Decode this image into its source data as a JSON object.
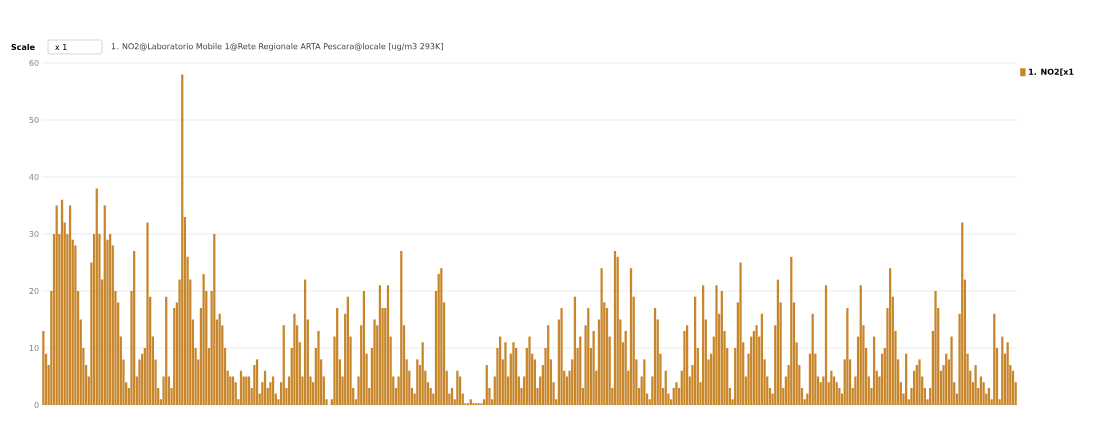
{
  "chart_data": {
    "type": "bar",
    "title": "1. NO2@Laboratorio Mobile 1@Rete Regionale ARTA Pescara@locale [ug/m3 293K]",
    "annotations": [
      "Scale",
      "x 1"
    ],
    "ylim": [
      0,
      60
    ],
    "yticks": [
      0,
      10,
      20,
      30,
      40,
      50,
      60
    ],
    "grid": "y",
    "legend": "top right",
    "series": [
      {
        "name": "1. NO2[x1",
        "color": "#c8862c",
        "values": [
          13,
          9,
          7,
          20,
          30,
          35,
          30,
          36,
          32,
          30,
          35,
          29,
          28,
          20,
          15,
          10,
          7,
          5,
          25,
          30,
          38,
          30,
          22,
          35,
          29,
          30,
          28,
          20,
          18,
          12,
          8,
          4,
          3,
          20,
          27,
          5,
          8,
          9,
          10,
          32,
          19,
          12,
          8,
          3,
          1,
          5,
          19,
          5,
          3,
          17,
          18,
          22,
          58,
          33,
          26,
          22,
          15,
          10,
          8,
          17,
          23,
          20,
          10,
          20,
          30,
          15,
          16,
          14,
          10,
          6,
          5,
          5,
          4,
          1,
          6,
          5,
          5,
          5,
          3,
          7,
          8,
          2,
          4,
          6,
          3,
          4,
          5,
          2,
          1,
          4,
          14,
          3,
          5,
          10,
          16,
          14,
          11,
          5,
          22,
          15,
          5,
          4,
          10,
          13,
          8,
          5,
          1,
          0,
          1,
          12,
          17,
          8,
          5,
          16,
          19,
          12,
          3,
          1,
          5,
          14,
          20,
          9,
          3,
          10,
          15,
          14,
          21,
          17,
          17,
          21,
          12,
          5,
          3,
          5,
          27,
          14,
          8,
          6,
          3,
          2,
          8,
          7,
          11,
          6,
          4,
          3,
          2,
          20,
          23,
          24,
          18,
          6,
          2,
          3,
          1,
          6,
          5,
          2,
          0.3,
          0.3,
          1,
          0.3,
          0.3,
          0.3,
          0.3,
          1,
          7,
          3,
          1,
          5,
          10,
          12,
          8,
          11,
          5,
          9,
          11,
          10,
          5,
          3,
          5,
          10,
          12,
          9,
          8,
          3,
          5,
          7,
          10,
          14,
          8,
          4,
          1,
          15,
          17,
          6,
          5,
          6,
          8,
          19,
          10,
          12,
          3,
          14,
          17,
          10,
          13,
          6,
          15,
          24,
          18,
          17,
          12,
          3,
          27,
          26,
          15,
          11,
          13,
          6,
          24,
          19,
          8,
          3,
          5,
          8,
          2,
          1,
          5,
          17,
          15,
          9,
          3,
          6,
          2,
          1,
          3,
          4,
          3,
          6,
          13,
          14,
          5,
          7,
          19,
          10,
          4,
          21,
          15,
          8,
          9,
          12,
          21,
          16,
          20,
          13,
          10,
          3,
          1,
          10,
          18,
          25,
          11,
          5,
          9,
          12,
          13,
          14,
          12,
          16,
          8,
          5,
          3,
          2,
          14,
          22,
          18,
          3,
          5,
          7,
          26,
          18,
          11,
          7,
          3,
          1,
          2,
          9,
          16,
          9,
          5,
          4,
          5,
          21,
          4,
          6,
          5,
          4,
          3,
          2,
          8,
          17,
          8,
          3,
          5,
          12,
          21,
          14,
          10,
          5,
          3,
          12,
          6,
          5,
          9,
          10,
          17,
          24,
          19,
          13,
          8,
          4,
          2,
          9,
          1,
          3,
          6,
          7,
          8,
          5,
          3,
          1,
          3,
          13,
          20,
          17,
          6,
          7,
          9,
          8,
          12,
          4,
          2,
          16,
          32,
          22,
          9,
          6,
          4,
          7,
          3,
          5,
          4,
          2,
          3,
          1,
          16,
          10,
          1,
          12,
          9,
          11,
          7,
          6,
          4
        ]
      }
    ]
  }
}
